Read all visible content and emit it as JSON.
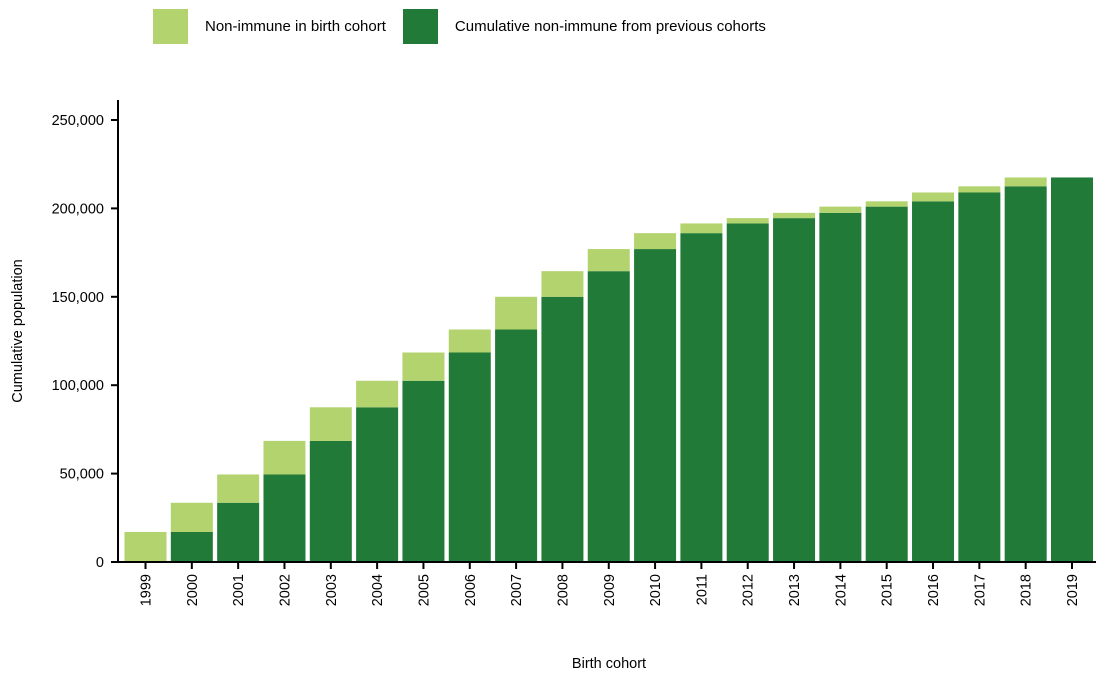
{
  "chart_data": {
    "type": "bar",
    "stacked": true,
    "xlabel": "Birth cohort",
    "ylabel": "Cumulative population",
    "ylim": [
      0,
      250000
    ],
    "yticks": [
      0,
      50000,
      100000,
      150000,
      200000,
      250000
    ],
    "ytick_labels": [
      "0",
      "50,000",
      "100,000",
      "150,000",
      "200,000",
      "250,000"
    ],
    "legend_position": "top-left",
    "grid": false,
    "categories": [
      "1999",
      "2000",
      "2001",
      "2002",
      "2003",
      "2004",
      "2005",
      "2006",
      "2007",
      "2008",
      "2009",
      "2010",
      "2011",
      "2012",
      "2013",
      "2014",
      "2015",
      "2016",
      "2017",
      "2018",
      "2019"
    ],
    "series": [
      {
        "name": "Cumulative non-immune from previous cohorts",
        "color": "#217a37",
        "values": [
          0,
          17000,
          33500,
          49500,
          68500,
          87500,
          102500,
          118500,
          131500,
          150000,
          164500,
          177000,
          186000,
          191500,
          194500,
          197500,
          201000,
          204000,
          209000,
          212500,
          217500
        ]
      },
      {
        "name": "Non-immune in birth cohort",
        "color": "#b2d36e",
        "values": [
          17000,
          16500,
          16000,
          19000,
          19000,
          15000,
          16000,
          13000,
          18500,
          14500,
          12500,
          9000,
          5500,
          3000,
          3000,
          3500,
          3000,
          5000,
          3500,
          5000,
          0
        ]
      }
    ]
  },
  "legend": {
    "items": [
      {
        "label": "Non-immune in birth cohort",
        "color": "#b2d36e"
      },
      {
        "label": "Cumulative non-immune from previous cohorts",
        "color": "#217a37"
      }
    ]
  }
}
